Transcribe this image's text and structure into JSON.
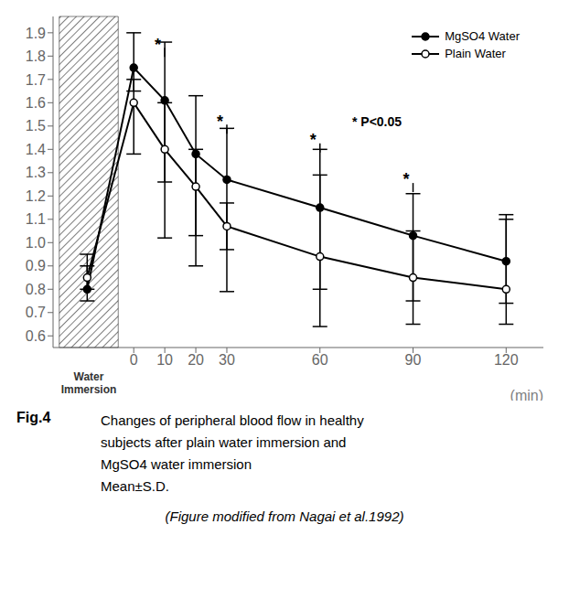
{
  "chart_data": {
    "type": "line",
    "x": [
      -15,
      0,
      10,
      20,
      30,
      60,
      90,
      120
    ],
    "series": [
      {
        "name": "MgSO4 Water",
        "color": "#000000",
        "marker": "filled_circle",
        "values": [
          0.8,
          1.75,
          1.61,
          1.38,
          1.27,
          1.15,
          1.03,
          0.92
        ],
        "error_lo": [
          0.05,
          0.1,
          0.35,
          0.35,
          0.3,
          0.35,
          0.28,
          0.18
        ],
        "error_hi": [
          0.1,
          0.15,
          0.25,
          0.25,
          0.22,
          0.25,
          0.18,
          0.18
        ]
      },
      {
        "name": "Plain Water",
        "color": "#000000",
        "marker": "open_circle",
        "values": [
          0.85,
          1.6,
          1.4,
          1.24,
          1.07,
          0.94,
          0.85,
          0.8
        ],
        "error_lo": [
          0.05,
          0.22,
          0.38,
          0.34,
          0.28,
          0.3,
          0.2,
          0.15
        ],
        "error_hi": [
          0.1,
          0.1,
          0.2,
          0.16,
          0.1,
          0.35,
          0.2,
          0.32
        ]
      }
    ],
    "xlim": [
      -26,
      132
    ],
    "xticks": [
      0,
      10,
      20,
      30,
      60,
      90,
      120
    ],
    "xlabel": "(min)",
    "ylim": [
      0.55,
      1.97
    ],
    "yticks": [
      0.6,
      0.7,
      0.8,
      0.9,
      {
        "value": 1,
        "label": "1.0"
      },
      1.1,
      1.2,
      1.3,
      1.4,
      1.5,
      1.6,
      1.7,
      1.8,
      1.9
    ],
    "grid": false,
    "legend": "upper right",
    "shaded_region": {
      "x": [
        -24,
        -5
      ],
      "label": [
        "Water",
        "Immersion"
      ]
    },
    "annotations": [
      {
        "x": 10,
        "y": 1.85,
        "marker_y": 1.82,
        "text": "*"
      },
      {
        "x": 30,
        "y": 1.52,
        "marker_y": 1.49,
        "text": "*"
      },
      {
        "x": 60,
        "y": 1.44,
        "marker_y": 1.41,
        "text": "*"
      },
      {
        "x": 90,
        "y": 1.27,
        "marker_y": 1.24,
        "text": "*"
      }
    ],
    "note": "* P<0.05",
    "caption": {
      "label": "Fig.4",
      "lines": [
        "Changes of peripheral blood flow in healthy",
        "subjects after plain water immersion and",
        "MgSO4 water immersion",
        "Mean±S.D."
      ],
      "source": "(Figure modified from Nagai et al.1992)"
    }
  }
}
